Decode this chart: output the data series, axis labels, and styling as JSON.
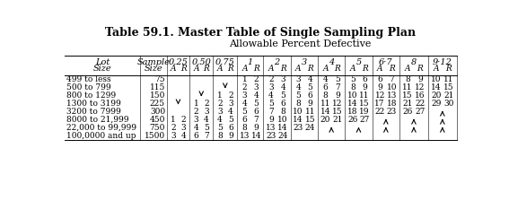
{
  "title": "Table 59.1. Master Table of Single Sampling Plan",
  "subtitle": "Allowable Percent Defective",
  "col_keys": [
    "0.25",
    "0.50",
    "0.75",
    "1",
    "2",
    "3",
    "4",
    "5",
    "6-7",
    "8",
    "9-12"
  ],
  "col_labels": [
    "0.25",
    "0.50",
    "0.75",
    "1",
    "2",
    "3",
    "4",
    "5",
    "6·7",
    "8",
    "9·12"
  ],
  "rows": [
    {
      "lot": "499 to less",
      "sample": "75",
      "0.25": "",
      "0.50": "",
      "0.75": "",
      "1": [
        "1",
        "2"
      ],
      "2": [
        "2",
        "3"
      ],
      "3": [
        "3",
        "4"
      ],
      "4": [
        "4",
        "5"
      ],
      "5": [
        "5",
        "6"
      ],
      "6-7": [
        "6",
        "7"
      ],
      "8": [
        "8",
        "9"
      ],
      "9-12": [
        "10",
        "11"
      ]
    },
    {
      "lot": "500 to 799",
      "sample": "115",
      "0.25": "",
      "0.50": "",
      "0.75": "D",
      "1": [
        "2",
        "3"
      ],
      "2": [
        "3",
        "4"
      ],
      "3": [
        "4",
        "5"
      ],
      "4": [
        "6",
        "7"
      ],
      "5": [
        "8",
        "9"
      ],
      "6-7": [
        "9",
        "10"
      ],
      "8": [
        "11",
        "12"
      ],
      "9-12": [
        "14",
        "15"
      ]
    },
    {
      "lot": "800 to 1299",
      "sample": "150",
      "0.25": "",
      "0.50": "D",
      "0.75": [
        "1",
        "2"
      ],
      "1": [
        "3",
        "4"
      ],
      "2": [
        "4",
        "5"
      ],
      "3": [
        "5",
        "6"
      ],
      "4": [
        "8",
        "9"
      ],
      "5": [
        "10",
        "11"
      ],
      "6-7": [
        "12",
        "13"
      ],
      "8": [
        "15",
        "16"
      ],
      "9-12": [
        "20",
        "21"
      ]
    },
    {
      "lot": "1300 to 3199",
      "sample": "225",
      "0.25": "D",
      "0.50": [
        "1",
        "2"
      ],
      "0.75": [
        "2",
        "3"
      ],
      "1": [
        "4",
        "5"
      ],
      "2": [
        "5",
        "6"
      ],
      "3": [
        "8",
        "9"
      ],
      "4": [
        "11",
        "12"
      ],
      "5": [
        "14",
        "15"
      ],
      "6-7": [
        "17",
        "18"
      ],
      "8": [
        "21",
        "22"
      ],
      "9-12": [
        "29",
        "30"
      ]
    },
    {
      "lot": "3200 to 7999",
      "sample": "300",
      "0.25": "",
      "0.50": [
        "2",
        "3"
      ],
      "0.75": [
        "3",
        "4"
      ],
      "1": [
        "5",
        "6"
      ],
      "2": [
        "7",
        "8"
      ],
      "3": [
        "10",
        "11"
      ],
      "4": [
        "14",
        "15"
      ],
      "5": [
        "18",
        "19"
      ],
      "6-7": [
        "22",
        "23"
      ],
      "8": [
        "26",
        "27"
      ],
      "9-12": "U"
    },
    {
      "lot": "8000 to 21,999",
      "sample": "450",
      "0.25": [
        "1",
        "2"
      ],
      "0.50": [
        "3",
        "4"
      ],
      "0.75": [
        "4",
        "5"
      ],
      "1": [
        "6",
        "7"
      ],
      "2": [
        "9",
        "10"
      ],
      "3": [
        "14",
        "15"
      ],
      "4": [
        "20",
        "21"
      ],
      "5": [
        "26",
        "27"
      ],
      "6-7": "U",
      "8": "U",
      "9-12": "U"
    },
    {
      "lot": "22,000 to 99,999",
      "sample": "750",
      "0.25": [
        "2",
        "3"
      ],
      "0.50": [
        "4",
        "5"
      ],
      "0.75": [
        "5",
        "6"
      ],
      "1": [
        "8",
        "9"
      ],
      "2": [
        "13",
        "14"
      ],
      "3": [
        "23",
        "24"
      ],
      "4": "U",
      "5": "U",
      "6-7": "U",
      "8": "U",
      "9-12": "U"
    },
    {
      "lot": "100,0000 and up",
      "sample": "1500",
      "0.25": [
        "3",
        "4"
      ],
      "0.50": [
        "6",
        "7"
      ],
      "0.75": [
        "8",
        "9"
      ],
      "1": [
        "13",
        "14"
      ],
      "2": [
        "23",
        "24"
      ],
      "3": "",
      "4": "",
      "5": "",
      "6-7": "",
      "8": "",
      "9-12": ""
    }
  ],
  "bg": "#ffffff",
  "title_fontsize": 9,
  "subtitle_fontsize": 8,
  "header_fontsize": 7,
  "data_fontsize": 7
}
